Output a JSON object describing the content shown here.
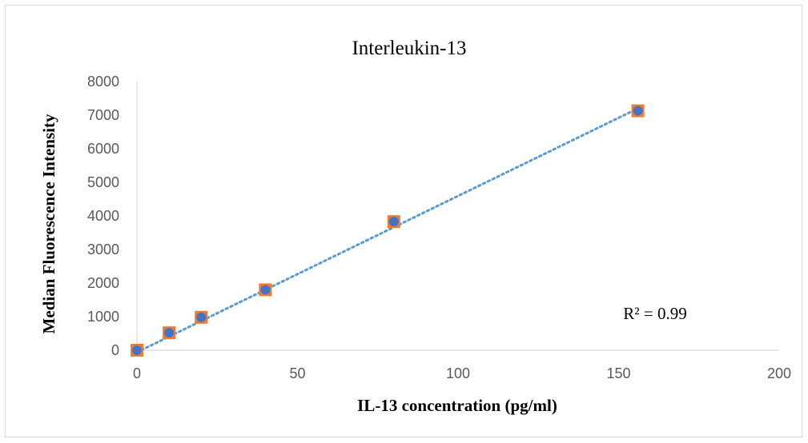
{
  "chart_data": {
    "type": "scatter",
    "title": "Interleukin-13",
    "xlabel": "IL-13 concentration (pg/ml)",
    "ylabel": "Median Fluorescence Intensity",
    "xlim": [
      0,
      200
    ],
    "ylim": [
      0,
      8000
    ],
    "xticks": [
      0,
      50,
      100,
      150,
      200
    ],
    "yticks": [
      0,
      1000,
      2000,
      3000,
      4000,
      5000,
      6000,
      7000,
      8000
    ],
    "grid": false,
    "series": [
      {
        "x": [
          0,
          10,
          20,
          40,
          80,
          156
        ],
        "y": [
          0,
          520,
          980,
          1800,
          3830,
          7130
        ],
        "marker_color": "#4472c4",
        "marker_edge_color": "#ed7d31"
      }
    ],
    "trendline": {
      "type": "linear",
      "x": [
        0,
        156
      ],
      "y": [
        -60,
        7200
      ],
      "color": "#5b9bd5",
      "style": "dotted"
    },
    "annotations": [
      {
        "text": "R² = 0.99"
      }
    ],
    "colors": {
      "axis": "#d9d9d9",
      "tick_text": "#595959"
    }
  }
}
